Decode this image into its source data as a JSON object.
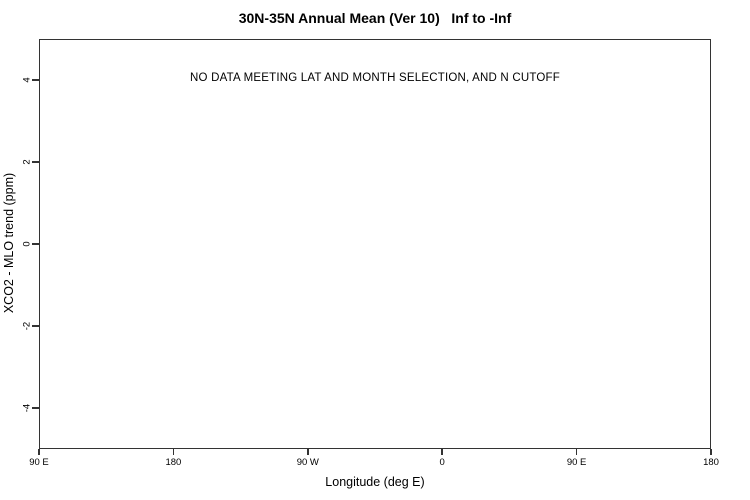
{
  "chart_data": {
    "type": "scatter",
    "title": "30N-35N Annual Mean (Ver 10)   Inf to -Inf",
    "xlabel": "Longitude (deg E)",
    "ylabel": "XCO2 - MLO trend (ppm)",
    "annotation": "NO DATA MEETING LAT AND MONTH SELECTION, AND N CUTOFF",
    "x_tick_labels": [
      "90 E",
      "180",
      "90 W",
      "0",
      "90 E",
      "180"
    ],
    "y_tick_values": [
      4,
      2,
      0,
      -2,
      -4
    ],
    "ylim": [
      -5,
      5
    ],
    "grid": false,
    "legend_position": "none",
    "series": [],
    "axis_color": "#333333",
    "text_color": "#000000",
    "background_color": "#ffffff"
  }
}
